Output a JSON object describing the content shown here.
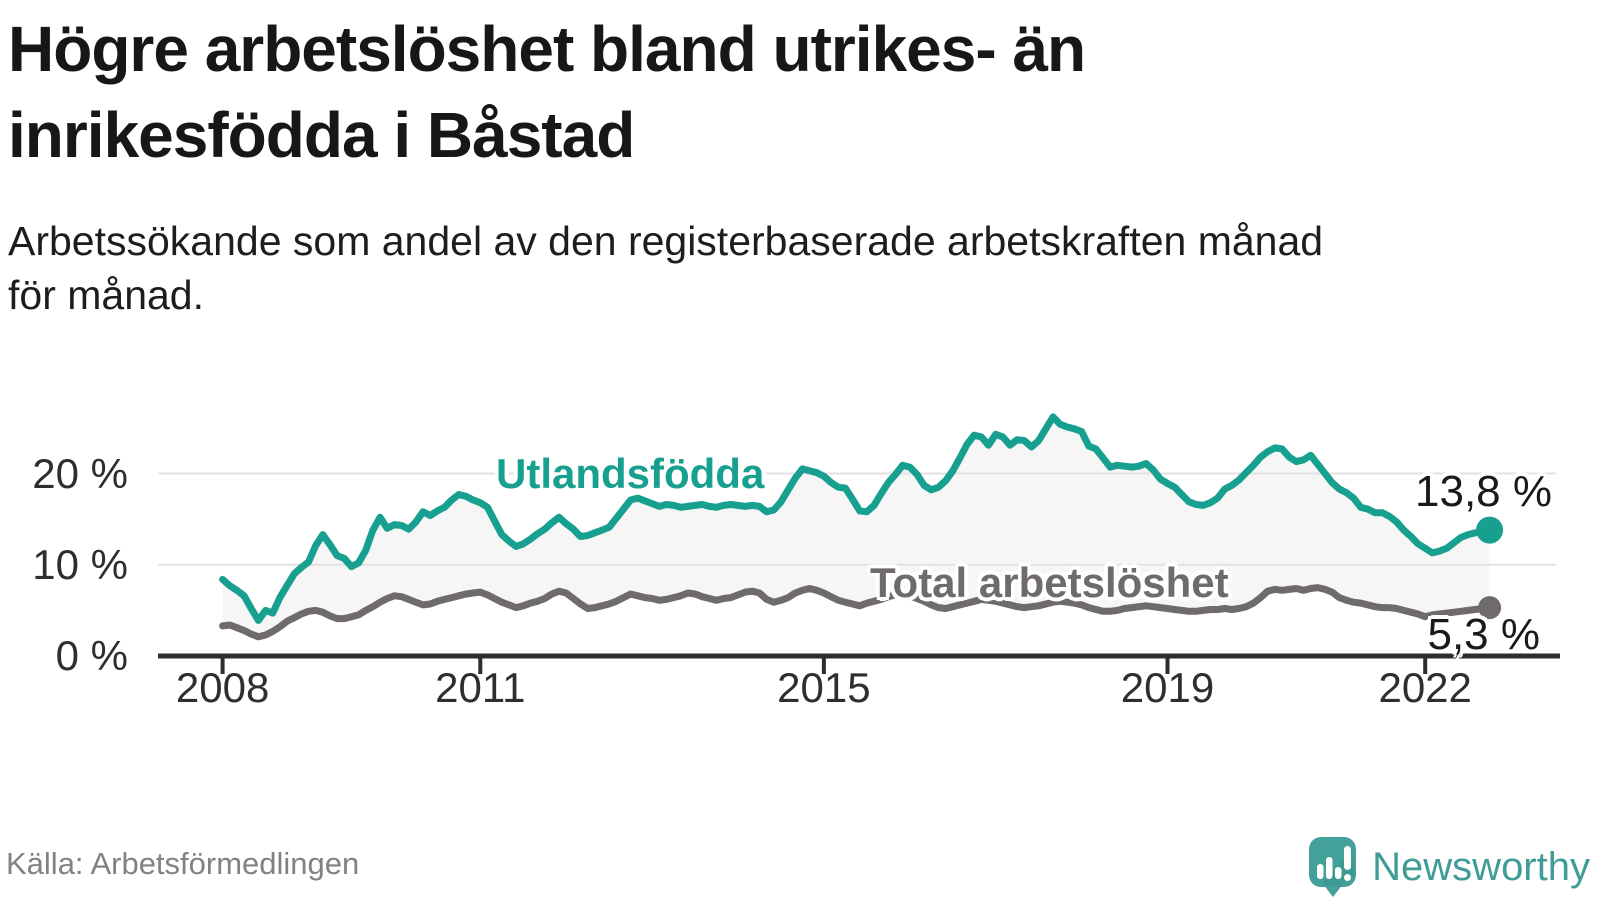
{
  "header": {
    "title_line1": "Högre arbetslöshet bland utrikes- än",
    "title_line2": "inrikesfödda i Båstad",
    "subtitle_line1": "Arbetssökande som andel av den registerbaserade arbetskraften månad",
    "subtitle_line2": "för månad."
  },
  "footer": {
    "source": "Källa: Arbetsförmedlingen",
    "brand": "Newsworthy"
  },
  "colors": {
    "series_foreign_born": "#17a08f",
    "series_total": "#6e6a6e",
    "fill_between": "#f6f6f6",
    "gridline": "#e2e2e2",
    "axis": "#2d2d2d",
    "text_dark": "#171717",
    "text_gray": "#828282",
    "brand_teal": "#3f9c96"
  },
  "chart_data": {
    "type": "line",
    "title": "Arbetssökande som andel av den registerbaserade arbetskraften månad för månad",
    "x_unit": "month",
    "x_start_year": 2008.0,
    "x_end_year": 2022.75,
    "x_step_months": 1,
    "x_ticks": [
      2008,
      2011,
      2015,
      2019,
      2022
    ],
    "x_tick_labels": [
      "2008",
      "2011",
      "2015",
      "2019",
      "2022"
    ],
    "y_ticks": [
      20,
      10,
      0
    ],
    "y_tick_labels": [
      "20 %",
      "10 %",
      "0 %"
    ],
    "ylim": [
      0,
      28
    ],
    "grid": "horizontal",
    "legend": "inline-labels",
    "series": [
      {
        "name": "Utlandsfödda",
        "color": "#17a08f",
        "end_value": 13.8,
        "end_label": "13,8 %",
        "values": [
          8.4,
          7.7,
          7.2,
          6.6,
          5.2,
          3.9,
          5.0,
          4.7,
          6.4,
          7.7,
          9.0,
          9.7,
          10.3,
          12.1,
          13.3,
          12.2,
          11.0,
          10.7,
          9.8,
          10.2,
          11.6,
          13.8,
          15.2,
          14.0,
          14.4,
          14.3,
          13.9,
          14.7,
          15.8,
          15.4,
          15.9,
          16.3,
          17.1,
          17.7,
          17.5,
          17.1,
          16.8,
          16.3,
          14.8,
          13.3,
          12.6,
          12.0,
          12.3,
          12.8,
          13.4,
          13.9,
          14.6,
          15.2,
          14.5,
          13.9,
          13.1,
          13.2,
          13.5,
          13.8,
          14.1,
          15.1,
          16.1,
          17.1,
          17.3,
          17.0,
          16.7,
          16.4,
          16.6,
          16.5,
          16.3,
          16.4,
          16.5,
          16.6,
          16.4,
          16.3,
          16.5,
          16.6,
          16.5,
          16.4,
          16.5,
          16.4,
          15.8,
          16.0,
          16.9,
          18.2,
          19.5,
          20.5,
          20.3,
          20.1,
          19.7,
          19.0,
          18.5,
          18.4,
          17.2,
          15.9,
          15.8,
          16.5,
          17.8,
          19.0,
          19.9,
          20.9,
          20.7,
          19.9,
          18.7,
          18.2,
          18.5,
          19.2,
          20.3,
          21.7,
          23.2,
          24.2,
          24.0,
          23.1,
          24.3,
          24.0,
          23.1,
          23.7,
          23.6,
          22.9,
          23.6,
          24.9,
          26.2,
          25.4,
          25.1,
          24.9,
          24.6,
          23.0,
          22.7,
          21.7,
          20.7,
          20.9,
          20.8,
          20.7,
          20.8,
          21.1,
          20.4,
          19.4,
          18.9,
          18.5,
          17.7,
          16.9,
          16.6,
          16.5,
          16.8,
          17.3,
          18.3,
          18.7,
          19.3,
          20.1,
          20.9,
          21.8,
          22.4,
          22.8,
          22.7,
          21.8,
          21.3,
          21.5,
          22.0,
          21.0,
          20.0,
          19.0,
          18.3,
          17.9,
          17.3,
          16.3,
          16.1,
          15.7,
          15.7,
          15.3,
          14.7,
          13.8,
          13.1,
          12.3,
          11.8,
          11.3,
          11.5,
          11.8,
          12.4,
          13.0,
          13.3,
          13.5,
          13.6,
          13.8
        ]
      },
      {
        "name": "Total arbetslöshet",
        "color": "#6e6a6e",
        "end_value": 5.3,
        "end_label": "5,3 %",
        "values": [
          3.3,
          3.4,
          3.1,
          2.8,
          2.4,
          2.1,
          2.3,
          2.7,
          3.2,
          3.8,
          4.2,
          4.6,
          4.9,
          5.0,
          4.8,
          4.4,
          4.1,
          4.1,
          4.3,
          4.5,
          5.0,
          5.4,
          5.9,
          6.3,
          6.6,
          6.5,
          6.2,
          5.9,
          5.6,
          5.7,
          6.0,
          6.2,
          6.4,
          6.6,
          6.8,
          6.9,
          7.0,
          6.7,
          6.3,
          5.9,
          5.6,
          5.3,
          5.5,
          5.8,
          6.0,
          6.3,
          6.8,
          7.1,
          6.9,
          6.3,
          5.7,
          5.2,
          5.3,
          5.5,
          5.7,
          6.0,
          6.4,
          6.8,
          6.6,
          6.4,
          6.3,
          6.1,
          6.2,
          6.4,
          6.6,
          6.9,
          6.8,
          6.5,
          6.3,
          6.1,
          6.3,
          6.4,
          6.7,
          7.0,
          7.1,
          6.9,
          6.2,
          5.9,
          6.1,
          6.4,
          6.9,
          7.2,
          7.4,
          7.2,
          6.9,
          6.5,
          6.1,
          5.9,
          5.7,
          5.5,
          5.8,
          6.0,
          6.2,
          6.5,
          6.7,
          6.8,
          6.6,
          6.3,
          6.0,
          5.6,
          5.3,
          5.2,
          5.4,
          5.6,
          5.8,
          6.0,
          6.2,
          6.1,
          6.0,
          5.8,
          5.6,
          5.4,
          5.3,
          5.4,
          5.5,
          5.7,
          5.9,
          6.0,
          5.9,
          5.8,
          5.6,
          5.3,
          5.1,
          4.9,
          4.9,
          5.0,
          5.2,
          5.3,
          5.4,
          5.5,
          5.4,
          5.3,
          5.2,
          5.1,
          5.0,
          4.9,
          4.9,
          5.0,
          5.1,
          5.1,
          5.2,
          5.1,
          5.2,
          5.4,
          5.8,
          6.4,
          7.1,
          7.3,
          7.2,
          7.3,
          7.4,
          7.2,
          7.4,
          7.5,
          7.3,
          7.0,
          6.4,
          6.1,
          5.9,
          5.8,
          5.6,
          5.4,
          5.3,
          5.3,
          5.2,
          5.0,
          4.8,
          4.6,
          4.3,
          4.5,
          4.6,
          4.7,
          4.8,
          4.9,
          5.0,
          5.1,
          5.2,
          5.3
        ]
      }
    ]
  }
}
